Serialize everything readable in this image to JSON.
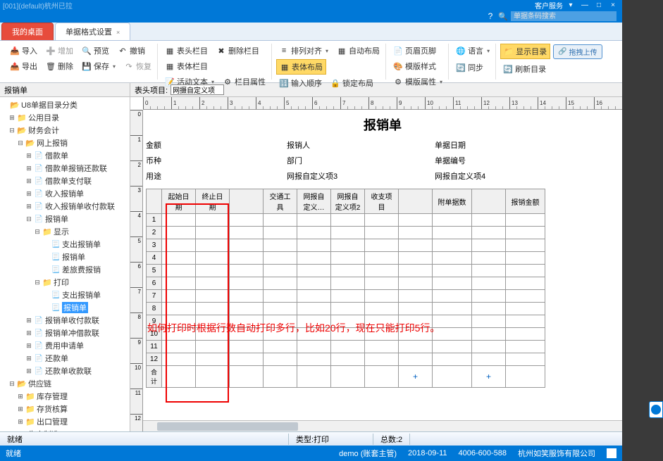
{
  "titlebar": {
    "left": "[001](default)杭州已拉",
    "menu": "客户服务"
  },
  "search": {
    "placeholder": "单据条码搜索"
  },
  "tabs": {
    "t1": "我的桌面",
    "t2": "单据格式设置"
  },
  "ribbon": {
    "import": "导入",
    "append": "增加",
    "preview": "预览",
    "undo": "撤销",
    "export": "导出",
    "delete": "删除",
    "save": "保存",
    "redo": "恢复",
    "headCol": "表头栏目",
    "bodyCol": "表体栏目",
    "delCol": "删除栏目",
    "activeText": "活动文本",
    "colAttr": "栏目属性",
    "alignCol": "排列对齐",
    "bodyLayout": "表体布局",
    "inputOrder": "输入顺序",
    "autoLayout": "自动布局",
    "lockLayout": "锁定布局",
    "headerFooter": "页眉页脚",
    "tmplStyle": "模版样式",
    "tmplAttr": "模版属性",
    "lang": "语言",
    "sync": "同步",
    "showDir": "显示目录",
    "refreshDir": "刷新目录",
    "dragUpload": "拖拽上传"
  },
  "subbar": {
    "left": "报销单",
    "label": "表头项目:",
    "value": "网摄自定义项"
  },
  "tree": {
    "root": "U8单据目录分类",
    "n1": "公用目录",
    "n2": "财务会计",
    "n3": "网上报销",
    "n31": "借款单",
    "n32": "借款单报销还款联",
    "n33": "借款单支付联",
    "n34": "收入报销单",
    "n35": "收入报销单收付款联",
    "n36": "报销单",
    "n361": "显示",
    "n3611": "支出报销单",
    "n3612": "报销单",
    "n3613": "差旅费报销",
    "n362": "打印",
    "n3621": "支出报销单",
    "n3622": "报销单",
    "n37": "报销单收付款联",
    "n38": "报销单冲借款联",
    "n39": "费用申请单",
    "n3a": "还款单",
    "n3b": "还款单收款联",
    "n4": "供应链",
    "n41": "库存管理",
    "n42": "存货核算",
    "n43": "出口管理",
    "n5": "生产制造"
  },
  "doc": {
    "title": "报销单",
    "fields": {
      "f1": "金额",
      "f2": "报销人",
      "f3": "单据日期",
      "f4": "币种",
      "f5": "部门",
      "f6": "单据编号",
      "f7": "用途",
      "f8": "网报自定义项3",
      "f9": "网报自定义项4"
    },
    "cols": {
      "c1": "起始日期",
      "c2": "终止日期",
      "c3": "交通工具",
      "c4": "网报自定义…",
      "c5": "网报自定义项2",
      "c6": "收支项目",
      "c7": "附单据数",
      "c8": "报销金额"
    },
    "sumRow": "合计",
    "annotation": "如何打印时根据行数自动打印多行，比如20行，现在只能打印5行。"
  },
  "status": {
    "s1": "就绪",
    "s2": "类型:打印",
    "s3": "总数:2"
  },
  "bottom": {
    "s1": "就绪",
    "user": "demo (账套主管)",
    "date": "2018-09-11",
    "phone": "4006-600-588",
    "company": "杭州如笑服饰有限公司"
  },
  "ruler": {
    "unit": 40
  }
}
